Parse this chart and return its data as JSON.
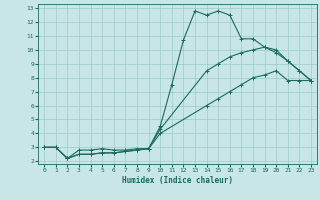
{
  "title": "",
  "xlabel": "Humidex (Indice chaleur)",
  "xlim": [
    0,
    23
  ],
  "ylim": [
    2,
    13
  ],
  "xticks": [
    0,
    1,
    2,
    3,
    4,
    5,
    6,
    7,
    8,
    9,
    10,
    11,
    12,
    13,
    14,
    15,
    16,
    17,
    18,
    19,
    20,
    21,
    22,
    23
  ],
  "yticks": [
    2,
    3,
    4,
    5,
    6,
    7,
    8,
    9,
    10,
    11,
    12,
    13
  ],
  "bg_color": "#c8e6e6",
  "grid_color": "#99cccc",
  "line_color": "#1a6b5a",
  "line1_x": [
    0,
    1,
    2,
    3,
    4,
    5,
    6,
    7,
    8,
    9,
    10,
    11,
    12,
    13,
    14,
    15,
    16,
    17,
    18,
    19,
    20,
    21,
    22,
    23
  ],
  "line1_y": [
    3.0,
    3.0,
    2.2,
    2.8,
    2.8,
    2.9,
    2.8,
    2.8,
    2.9,
    2.9,
    4.5,
    7.5,
    10.7,
    12.8,
    12.5,
    12.8,
    12.5,
    10.8,
    10.8,
    10.2,
    9.8,
    9.2,
    8.5,
    7.8
  ],
  "line2_x": [
    0,
    1,
    2,
    3,
    4,
    5,
    6,
    7,
    8,
    9,
    10,
    14,
    15,
    16,
    17,
    18,
    19,
    20,
    21,
    22,
    23
  ],
  "line2_y": [
    3.0,
    3.0,
    2.2,
    2.5,
    2.5,
    2.6,
    2.6,
    2.7,
    2.8,
    2.9,
    4.3,
    8.5,
    9.0,
    9.5,
    9.8,
    10.0,
    10.2,
    10.0,
    9.2,
    8.5,
    7.8
  ],
  "line3_x": [
    0,
    1,
    2,
    3,
    4,
    5,
    6,
    7,
    8,
    9,
    10,
    14,
    15,
    16,
    17,
    18,
    19,
    20,
    21,
    22,
    23
  ],
  "line3_y": [
    3.0,
    3.0,
    2.2,
    2.5,
    2.5,
    2.6,
    2.6,
    2.7,
    2.8,
    2.9,
    4.0,
    6.0,
    6.5,
    7.0,
    7.5,
    8.0,
    8.2,
    8.5,
    7.8,
    7.8,
    7.8
  ]
}
